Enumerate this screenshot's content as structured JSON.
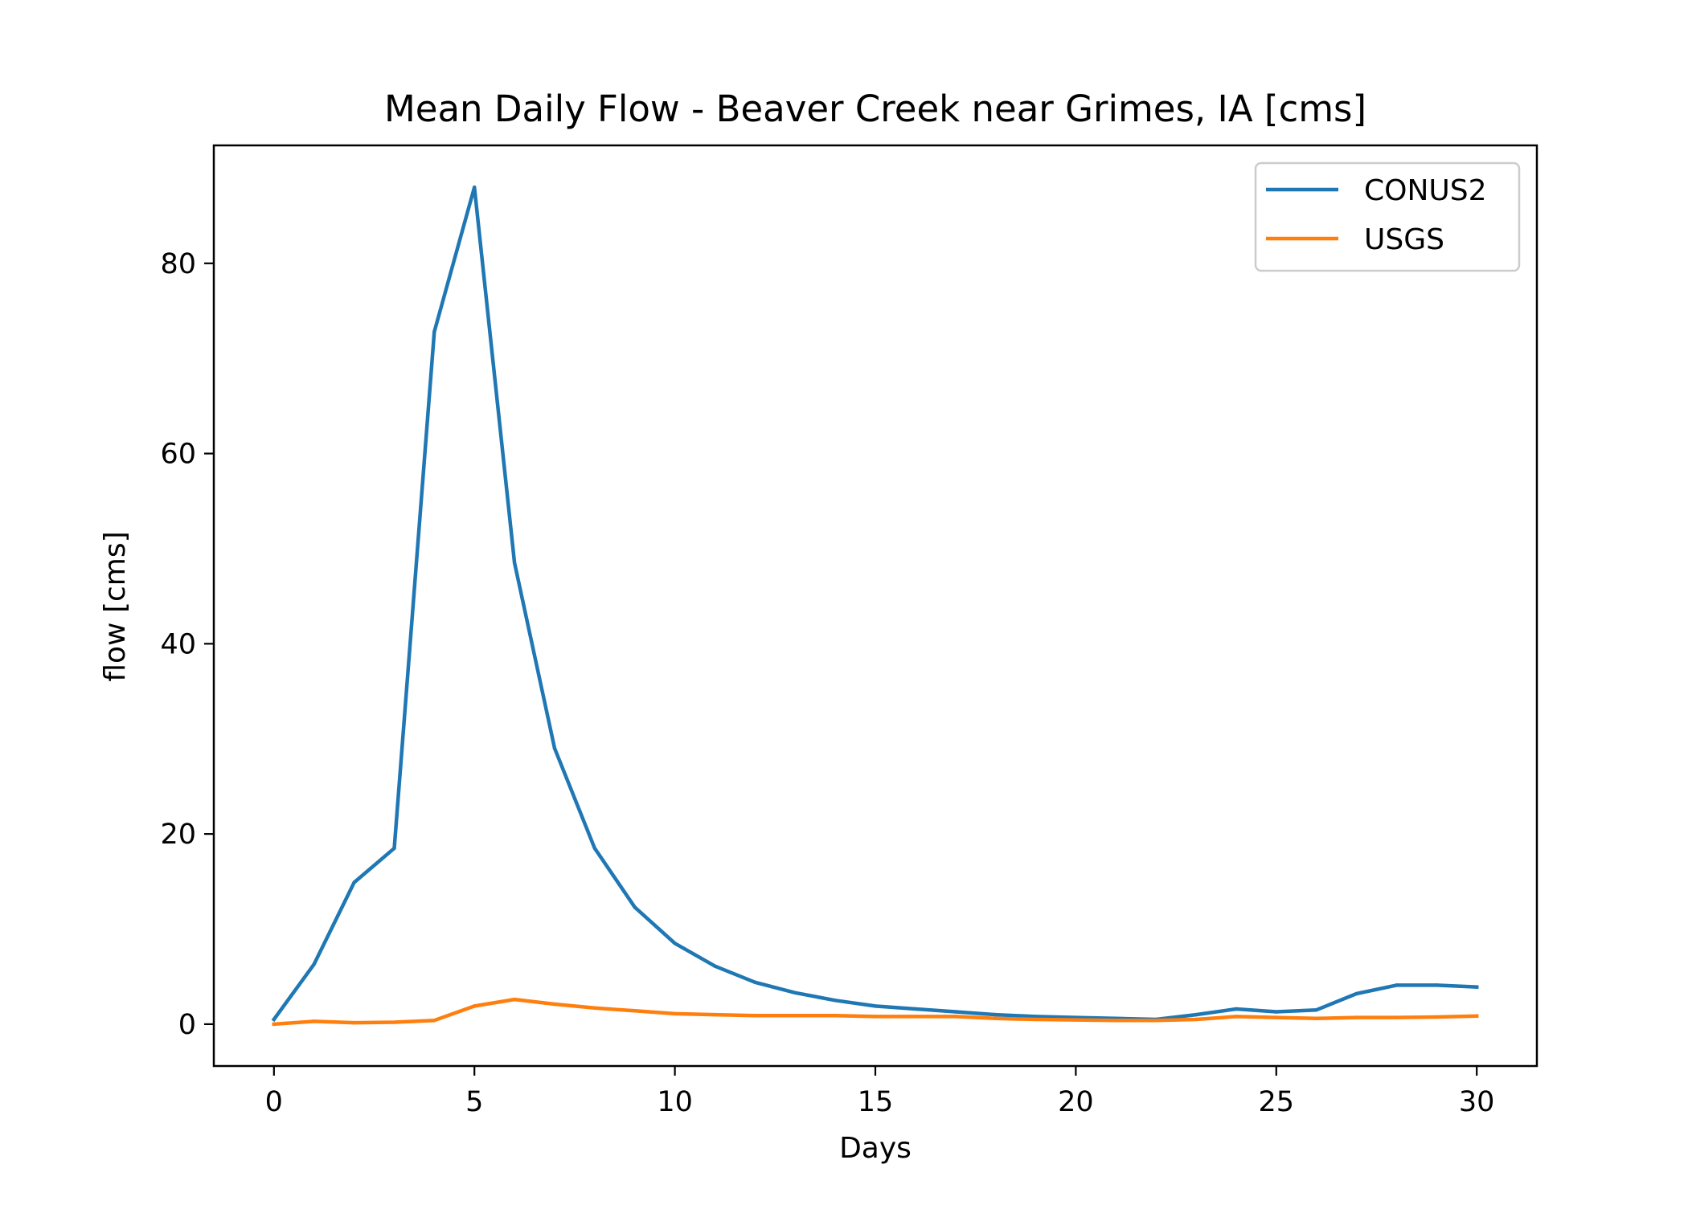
{
  "chart_data": {
    "type": "line",
    "title": "Mean Daily Flow - Beaver Creek near Grimes, IA [cms]",
    "xlabel": "Days",
    "ylabel": "flow [cms]",
    "xlim": [
      -1.5,
      31.5
    ],
    "ylim": [
      -4.4,
      92.4
    ],
    "xticks": [
      0,
      5,
      10,
      15,
      20,
      25,
      30
    ],
    "yticks": [
      0,
      20,
      40,
      60,
      80
    ],
    "grid": false,
    "legend_position": "top-right",
    "x": [
      0,
      1,
      2,
      3,
      4,
      5,
      6,
      7,
      8,
      9,
      10,
      11,
      12,
      13,
      14,
      15,
      16,
      17,
      18,
      19,
      20,
      21,
      22,
      23,
      24,
      25,
      26,
      27,
      28,
      29,
      30
    ],
    "series": [
      {
        "name": "CONUS2",
        "color": "#1f77b4",
        "values": [
          0.5,
          6.3,
          14.9,
          18.5,
          72.8,
          88.0,
          48.5,
          29.0,
          18.5,
          12.3,
          8.5,
          6.1,
          4.4,
          3.3,
          2.5,
          1.9,
          1.6,
          1.3,
          1.0,
          0.8,
          0.7,
          0.6,
          0.5,
          1.0,
          1.6,
          1.3,
          1.5,
          3.2,
          4.1,
          4.1,
          3.9
        ]
      },
      {
        "name": "USGS",
        "color": "#ff7f0e",
        "values": [
          0.0,
          0.3,
          0.15,
          0.2,
          0.4,
          1.9,
          2.6,
          2.1,
          1.7,
          1.4,
          1.1,
          1.0,
          0.9,
          0.9,
          0.9,
          0.8,
          0.8,
          0.8,
          0.6,
          0.5,
          0.45,
          0.4,
          0.4,
          0.5,
          0.8,
          0.7,
          0.6,
          0.7,
          0.7,
          0.75,
          0.85
        ]
      }
    ]
  }
}
